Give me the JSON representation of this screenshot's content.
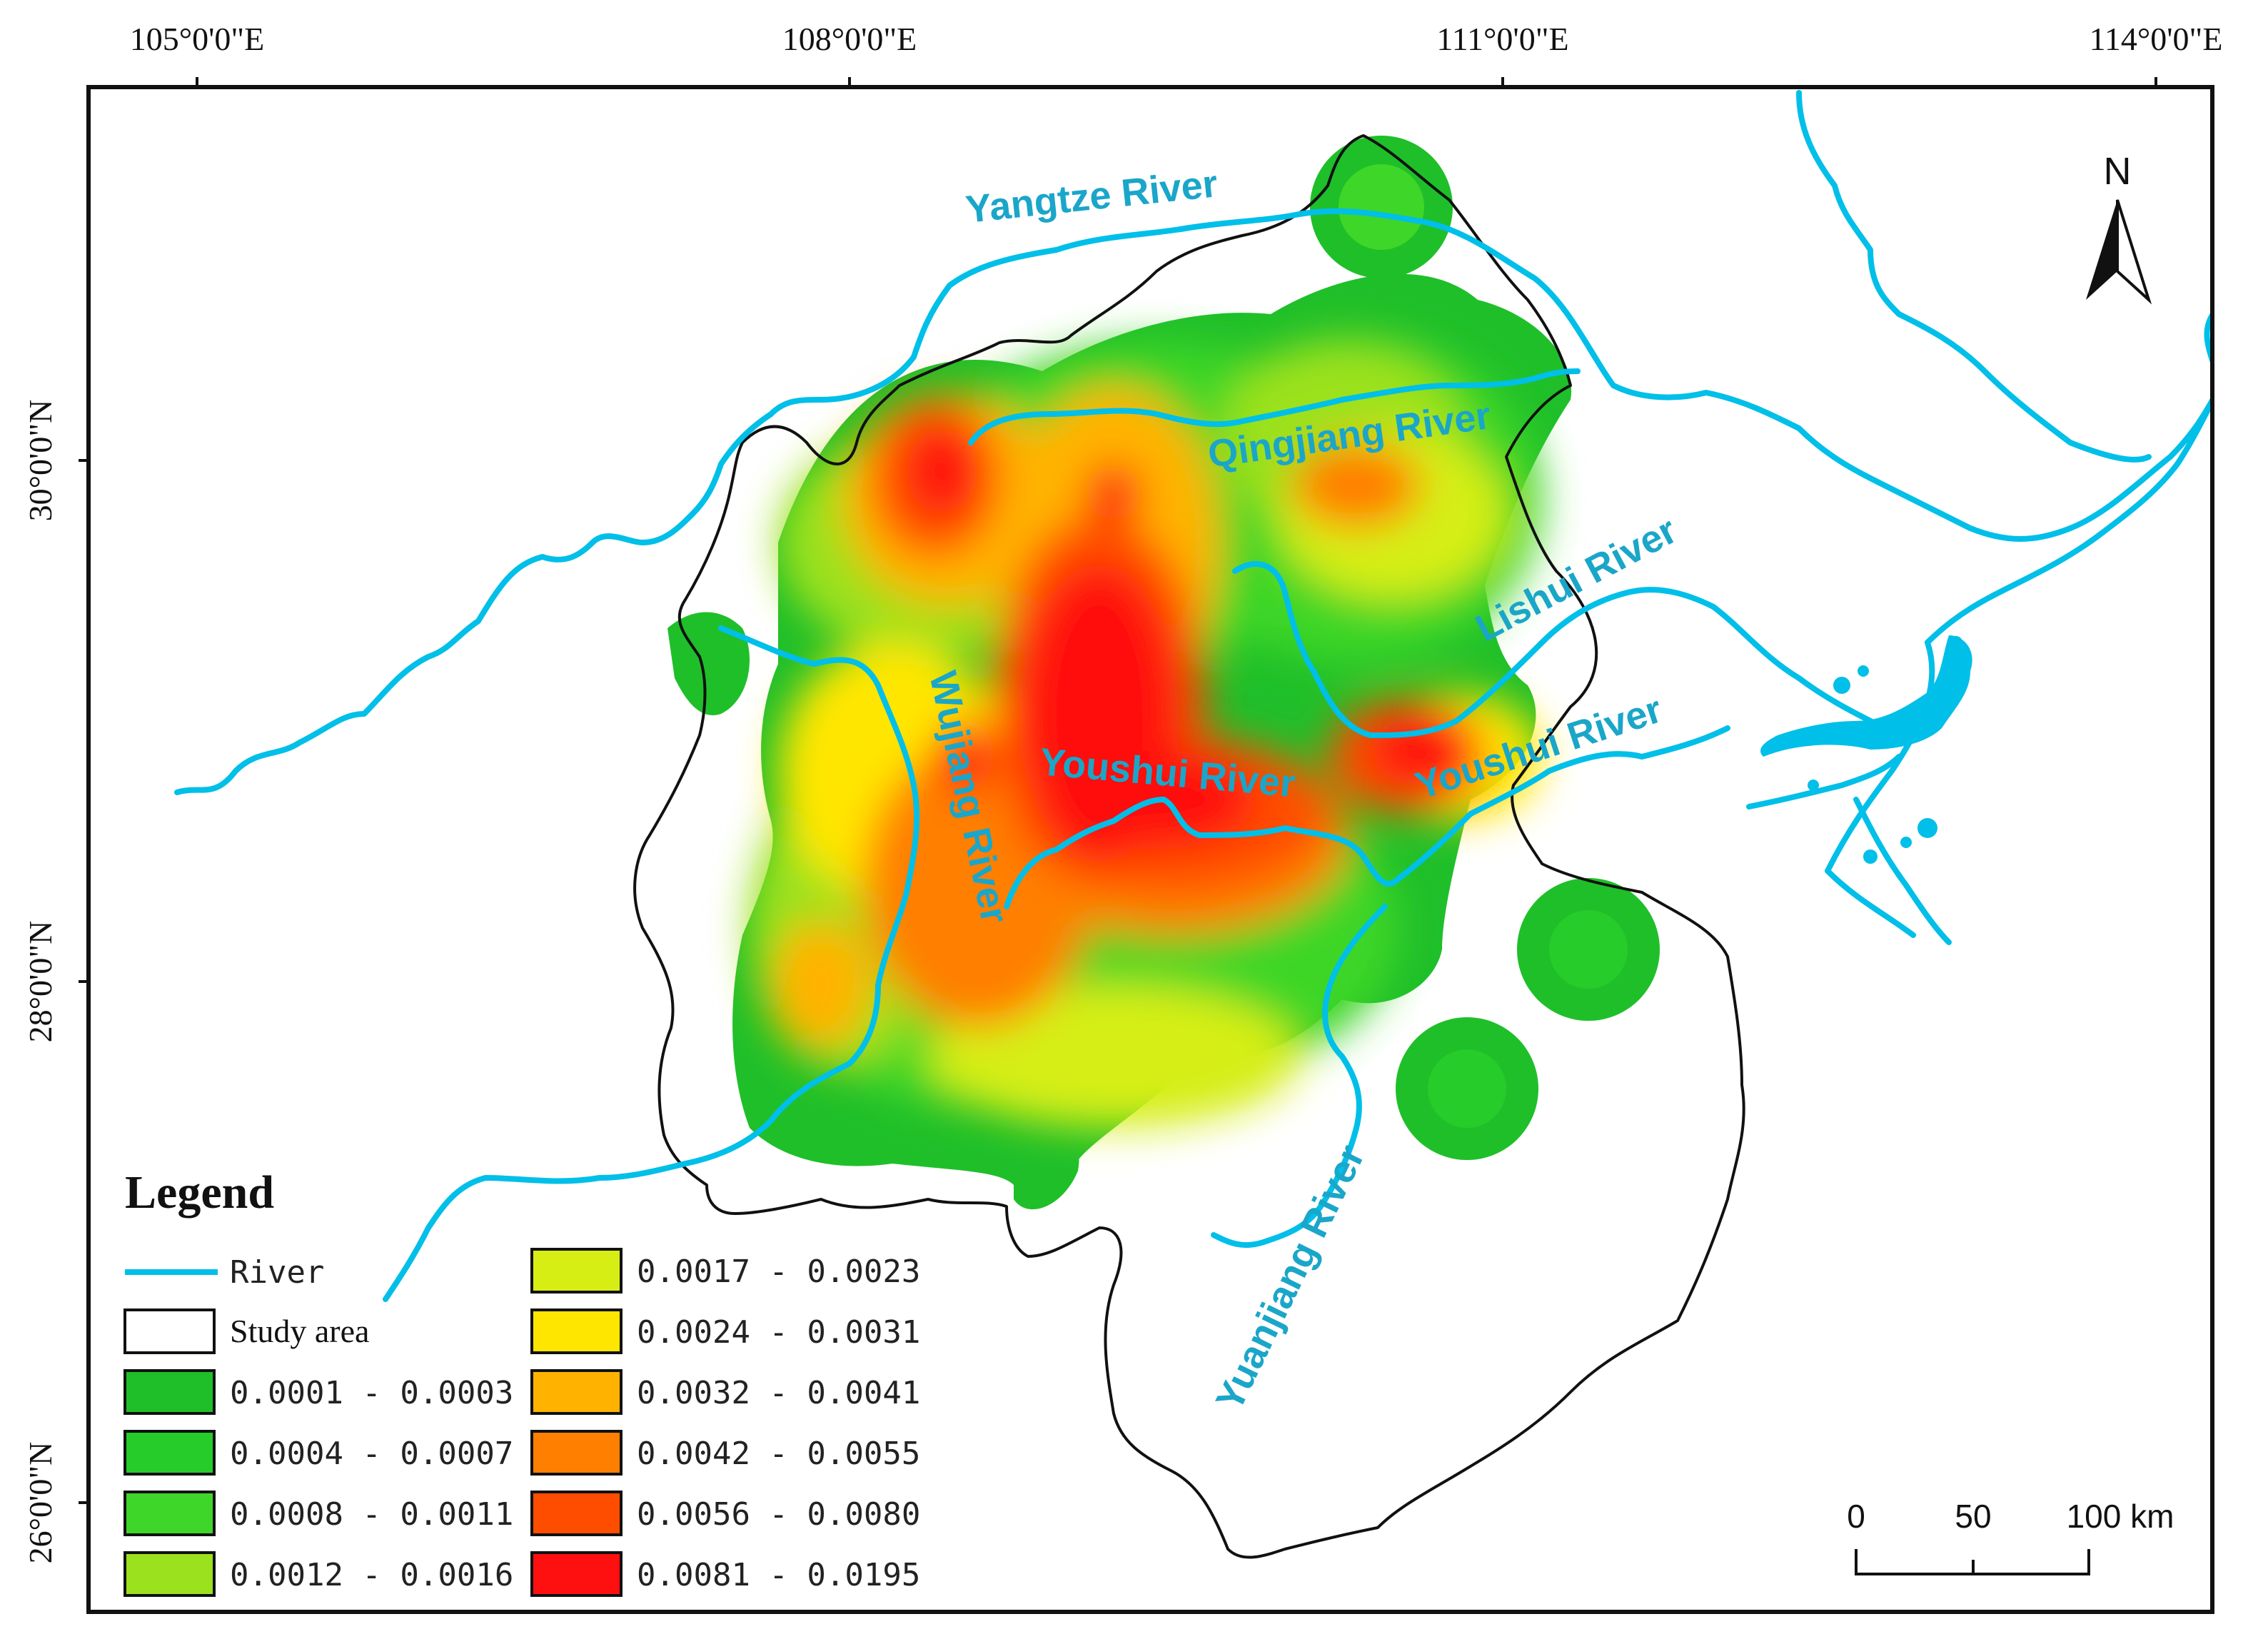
{
  "axes": {
    "longitude_labels": [
      "105°0'0\"E",
      "108°0'0\"E",
      "111°0'0\"E",
      "114°0'0\"E"
    ],
    "latitude_labels": [
      "30°0'0\"N",
      "28°0'0\"N",
      "26°0'0\"N"
    ]
  },
  "rivers": {
    "color": "#00bfe8",
    "labels": {
      "yangtze": "Yangtze River",
      "qingjiang": "Qingjiang River",
      "lishui": "Lishui River",
      "youshui_1": "Youshui River",
      "youshui_2": "Youshui River",
      "wujiang": "Wujiang River",
      "yuanjiang": "Yuanjiang River"
    }
  },
  "north_arrow": {
    "label": "N"
  },
  "scale_bar": {
    "labels": [
      "0",
      "50",
      "100 km"
    ]
  },
  "legend": {
    "title": "Legend",
    "river_label": "River",
    "study_area_label": "Study area",
    "classes": [
      {
        "range": "0.0001 - 0.0003",
        "color": "#1fbf2a"
      },
      {
        "range": "0.0004 - 0.0007",
        "color": "#26cc2a"
      },
      {
        "range": "0.0008 - 0.0011",
        "color": "#3ed628"
      },
      {
        "range": "0.0012 - 0.0016",
        "color": "#9be11d"
      },
      {
        "range": "0.0017 - 0.0023",
        "color": "#d6ee14"
      },
      {
        "range": "0.0024 - 0.0031",
        "color": "#ffe600"
      },
      {
        "range": "0.0032 - 0.0041",
        "color": "#ffb300"
      },
      {
        "range": "0.0042 - 0.0055",
        "color": "#ff7f00"
      },
      {
        "range": "0.0056 - 0.0080",
        "color": "#ff4d00"
      },
      {
        "range": "0.0081 - 0.0195",
        "color": "#ff1010"
      }
    ]
  }
}
